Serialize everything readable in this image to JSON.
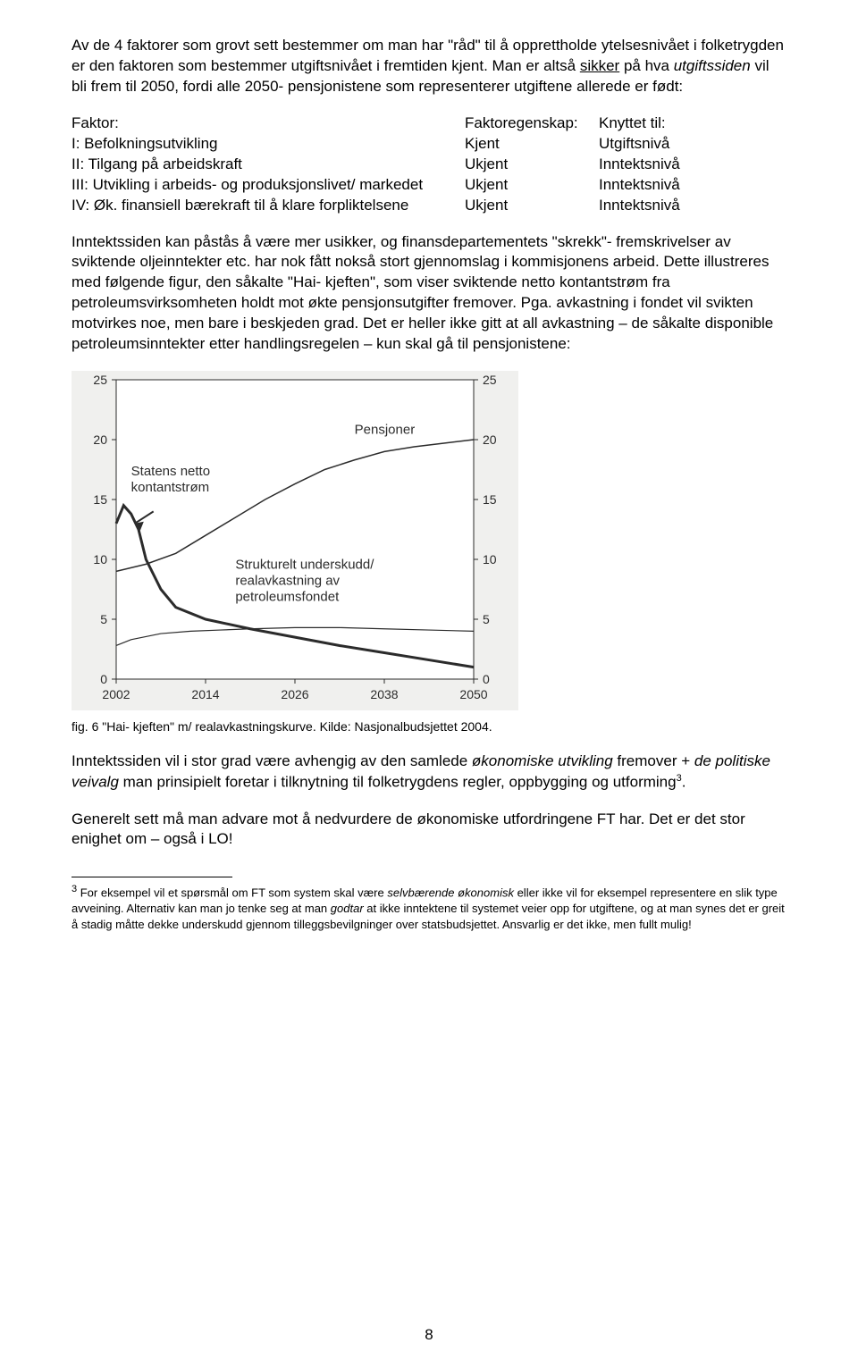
{
  "para1_a": "Av de 4 faktorer som grovt sett bestemmer om man har \"råd\" til å opprettholde ytelsesnivået i folketrygden er den faktoren som bestemmer utgiftsnivået i fremtiden kjent. Man er altså ",
  "para1_sikker": "sikker",
  "para1_b": " på hva ",
  "para1_utg": "utgiftssiden",
  "para1_c": " vil bli frem til 2050, fordi alle 2050- pensjonistene som representerer utgiftene allerede er født:",
  "factors": {
    "header": {
      "c1": "Faktor:",
      "c2": "Faktoregenskap:",
      "c3": "Knyttet til:"
    },
    "rows": [
      {
        "c1": "I: Befolkningsutvikling",
        "c2": "Kjent",
        "c3": "Utgiftsnivå"
      },
      {
        "c1": "II: Tilgang på arbeidskraft",
        "c2": "Ukjent",
        "c3": "Inntektsnivå"
      },
      {
        "c1": "III: Utvikling i arbeids- og produksjonslivet/ markedet",
        "c2": "Ukjent",
        "c3": "Inntektsnivå"
      },
      {
        "c1": "IV: Øk. finansiell bærekraft til å klare forpliktelsene",
        "c2": "Ukjent",
        "c3": "Inntektsnivå"
      }
    ]
  },
  "para3": "Inntektssiden kan påstås å være mer usikker, og finansdepartementets \"skrekk\"- fremskrivelser av sviktende oljeinntekter etc. har nok fått nokså stort gjennomslag i kommisjonens arbeid. Dette illustreres med følgende figur, den såkalte \"Hai- kjeften\", som viser sviktende netto kontantstrøm fra petroleumsvirksomheten holdt mot økte pensjonsutgifter fremover. Pga. avkastning i fondet vil svikten motvirkes noe, men bare i beskjeden grad. Det er heller ikke gitt at all avkastning – de såkalte disponible petroleumsinntekter etter handlingsregelen – kun skal gå til pensjonistene:",
  "chart": {
    "type": "line",
    "background_color": "#f0f0ee",
    "plot_bg": "#ffffff",
    "frame_color": "#2b2b2b",
    "grid_color": "#2b2b2b",
    "text_color": "#2b2b2b",
    "axis_fontsize": 14,
    "label_fontsize": 15,
    "x_ticks": [
      "2002",
      "2014",
      "2026",
      "2038",
      "2050"
    ],
    "y_ticks": [
      0,
      5,
      10,
      15,
      20,
      25
    ],
    "xlim": [
      2002,
      2050
    ],
    "ylim": [
      0,
      25
    ],
    "series": {
      "pensjoner": {
        "label": "Pensjoner",
        "color": "#2b2b2b",
        "width": 1.5,
        "points": [
          [
            2002,
            9.0
          ],
          [
            2004,
            9.3
          ],
          [
            2006,
            9.6
          ],
          [
            2010,
            10.5
          ],
          [
            2014,
            12.0
          ],
          [
            2018,
            13.5
          ],
          [
            2022,
            15.0
          ],
          [
            2026,
            16.3
          ],
          [
            2030,
            17.5
          ],
          [
            2034,
            18.3
          ],
          [
            2038,
            19.0
          ],
          [
            2042,
            19.4
          ],
          [
            2046,
            19.7
          ],
          [
            2050,
            20.0
          ]
        ]
      },
      "kontantstrom": {
        "label": "Statens netto kontantstrøm",
        "color": "#2b2b2b",
        "width": 3,
        "points": [
          [
            2002,
            13.0
          ],
          [
            2003,
            14.5
          ],
          [
            2004,
            13.8
          ],
          [
            2005,
            12.5
          ],
          [
            2006,
            10.0
          ],
          [
            2008,
            7.5
          ],
          [
            2010,
            6.0
          ],
          [
            2014,
            5.0
          ],
          [
            2020,
            4.2
          ],
          [
            2026,
            3.5
          ],
          [
            2032,
            2.8
          ],
          [
            2038,
            2.2
          ],
          [
            2044,
            1.6
          ],
          [
            2050,
            1.0
          ]
        ]
      },
      "strukturelt": {
        "label": "Strukturelt underskudd/ realavkastning av petroleumsfondet",
        "color": "#2b2b2b",
        "width": 1.2,
        "points": [
          [
            2002,
            2.8
          ],
          [
            2004,
            3.3
          ],
          [
            2008,
            3.8
          ],
          [
            2012,
            4.0
          ],
          [
            2016,
            4.1
          ],
          [
            2020,
            4.2
          ],
          [
            2026,
            4.3
          ],
          [
            2032,
            4.3
          ],
          [
            2038,
            4.2
          ],
          [
            2044,
            4.1
          ],
          [
            2050,
            4.0
          ]
        ]
      }
    },
    "arrow_label": "Statens netto\nkontantstrøm",
    "pensjoner_label": "Pensjoner",
    "strukturelt_label": "Strukturelt underskudd/\nrealavkastning av\npetroleumsfondet"
  },
  "chart_caption": "fig. 6 \"Hai- kjeften\" m/ realavkastningskurve. Kilde: Nasjonalbudsjettet 2004.",
  "para4_a": "Inntektssiden vil i stor grad være avhengig av den samlede ",
  "para4_i1": "økonomiske utvikling",
  "para4_b": " fremover + ",
  "para4_i2": "de politiske veivalg",
  "para4_c": " man prinsipielt foretar i tilknytning til folketrygdens regler, oppbygging og utforming",
  "para4_sup": "3",
  "para4_d": ".",
  "para5": "Generelt sett må man advare mot å nedvurdere de økonomiske utfordringene FT har. Det er det stor enighet om – også i LO!",
  "footnote_num": "3",
  "footnote_a": " For eksempel vil et spørsmål om FT som system skal være ",
  "footnote_i": "selvbærende økonomisk",
  "footnote_b": " eller ikke vil for eksempel representere en slik type avveining. Alternativ kan man jo tenke seg at man ",
  "footnote_i2": "godtar",
  "footnote_c": " at ikke inntektene til systemet veier opp for utgiftene, og at man synes det er greit å stadig måtte dekke underskudd gjennom tilleggsbevilgninger over statsbudsjettet. Ansvarlig er det ikke, men fullt mulig!",
  "page_number": "8"
}
